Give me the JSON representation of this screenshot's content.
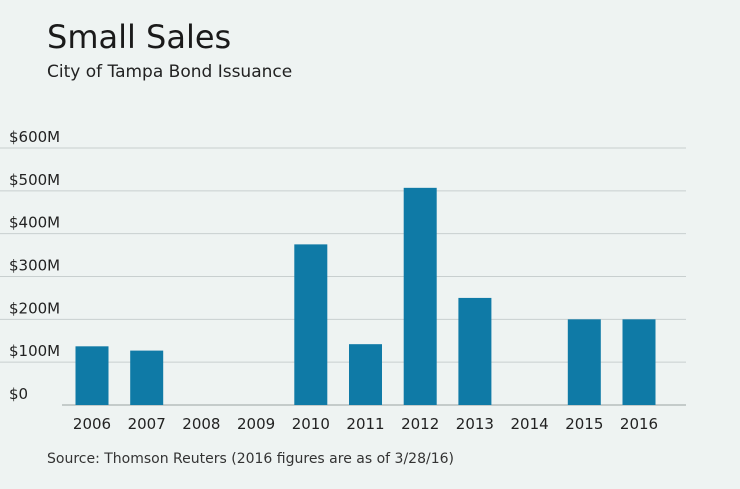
{
  "header": {
    "title": "Small Sales",
    "subtitle": "City of Tampa Bond Issuance"
  },
  "footer": {
    "source": "Source: Thomson Reuters (2016 figures are as of 3/28/16)"
  },
  "colors": {
    "bar": "#0f7aa6",
    "grid": "#c8cfcf",
    "background": "#eef3f2"
  },
  "chart_data": {
    "type": "bar",
    "title": "Small Sales",
    "subtitle": "City of Tampa Bond Issuance",
    "xlabel": "",
    "ylabel": "",
    "categories": [
      "2006",
      "2007",
      "2008",
      "2009",
      "2010",
      "2011",
      "2012",
      "2013",
      "2014",
      "2015",
      "2016"
    ],
    "values": [
      137,
      127,
      0,
      0,
      375,
      142,
      507,
      250,
      0,
      200,
      200
    ],
    "unit": "millions of dollars",
    "ylim": [
      0,
      600
    ],
    "yticks": [
      0,
      100,
      200,
      300,
      400,
      500,
      600
    ],
    "ytick_labels": [
      "$0",
      "$100M",
      "$200M",
      "$300M",
      "$400M",
      "$500M",
      "$600M"
    ],
    "grid": true,
    "legend": "none"
  }
}
